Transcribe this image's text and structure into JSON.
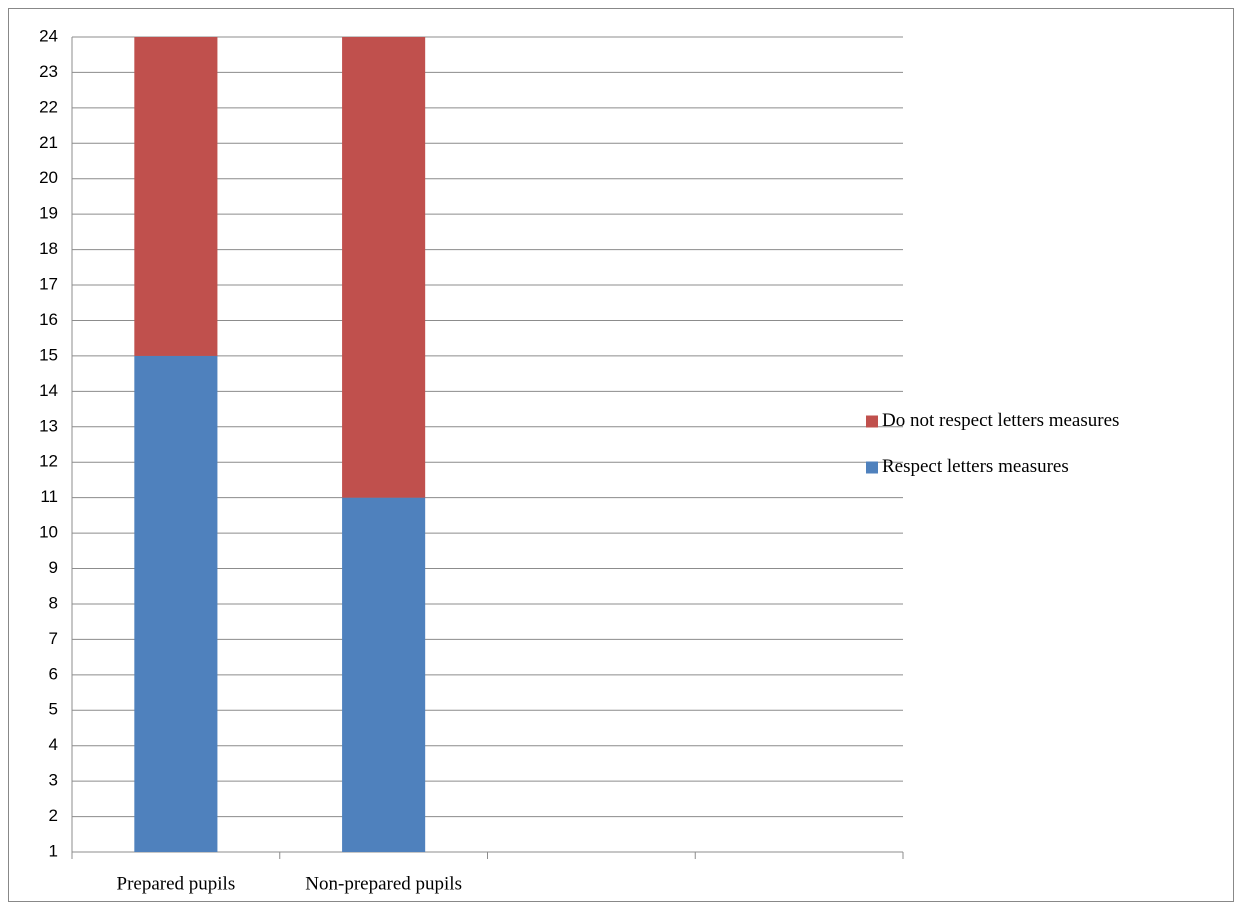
{
  "chart_data": {
    "type": "stacked-bar",
    "categories": [
      "Prepared pupils",
      "Non-prepared pupils",
      null,
      null
    ],
    "series": [
      {
        "name": "Respect letters measures",
        "color": "#4f81bd",
        "values": [
          15,
          11,
          null,
          null
        ]
      },
      {
        "name": "Do not respect letters measures",
        "color": "#c0504d",
        "values": [
          9,
          13,
          null,
          null
        ]
      }
    ],
    "ylim": [
      1,
      24
    ],
    "yticks": [
      1,
      2,
      3,
      4,
      5,
      6,
      7,
      8,
      9,
      10,
      11,
      12,
      13,
      14,
      15,
      16,
      17,
      18,
      19,
      20,
      21,
      22,
      23,
      24
    ],
    "grid": true,
    "legend": "right"
  }
}
